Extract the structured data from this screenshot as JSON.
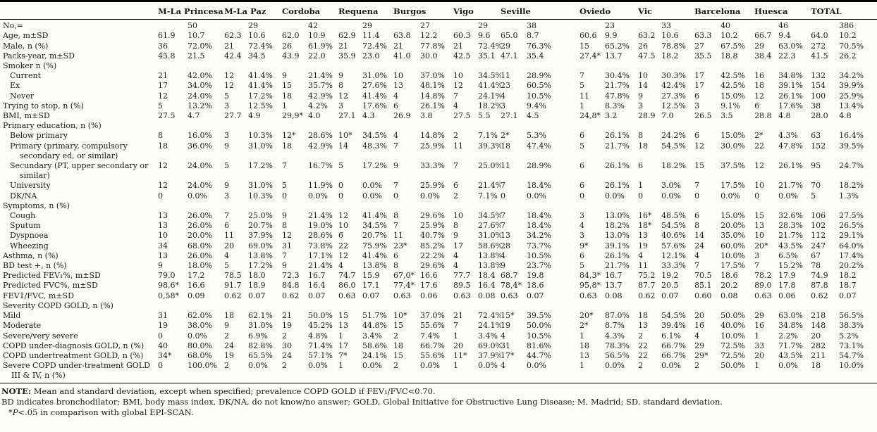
{
  "table": {
    "city_columns": [
      "M-La Princesa",
      "M-La Paz",
      "Cordoba",
      "Requena",
      "Burgos",
      "Vigo",
      "Seville",
      "Oviedo",
      "Vic",
      "Barcelona",
      "Huesca",
      "TOTAL"
    ],
    "rows": [
      {
        "label": "No,=",
        "indent": 0,
        "section": false,
        "cells": [
          "",
          "50",
          "",
          "29",
          "",
          "42",
          "",
          "29",
          "",
          "27",
          "",
          "29",
          "",
          "38",
          "",
          "23",
          "",
          "33",
          "",
          "40",
          "",
          "46",
          "",
          "386"
        ]
      },
      {
        "label": "Age, m±SD",
        "indent": 0,
        "section": false,
        "cells": [
          "61.9",
          "10.7",
          "62.3",
          "10.6",
          "62.0",
          "10.9",
          "62.9",
          "11.4",
          "63.8",
          "12.2",
          "60.3",
          "9.6",
          "65.0",
          "8.7",
          "60.6",
          "9.9",
          "63.2",
          "10.6",
          "63.3",
          "10.2",
          "66.7",
          "9.4",
          "64.0",
          "10.2"
        ]
      },
      {
        "label": "Male, n (%)",
        "indent": 0,
        "section": false,
        "cells": [
          "36",
          "72.0%",
          "21",
          "72.4%",
          "26",
          "61.9%",
          "21",
          "72.4%",
          "21",
          "77.8%",
          "21",
          "72.4%",
          "29",
          "76.3%",
          "15",
          "65.2%",
          "26",
          "78.8%",
          "27",
          "67.5%",
          "29",
          "63.0%",
          "272",
          "70.5%"
        ]
      },
      {
        "label": "Packs-year, m±SD",
        "indent": 0,
        "section": false,
        "cells": [
          "45.8",
          "21.5",
          "42.4",
          "34.5",
          "43.9",
          "22.0",
          "35.9",
          "23.0",
          "41.0",
          "30.0",
          "42.5",
          "35.1",
          "47.1",
          "35.4",
          "27,4*",
          "13.7",
          "47.5",
          "18.2",
          "35.5",
          "18.8",
          "38.4",
          "22.3",
          "41.5",
          "26.2"
        ]
      },
      {
        "label": "Smoker n (%)",
        "indent": 0,
        "section": true,
        "cells": []
      },
      {
        "label": "Current",
        "indent": 1,
        "section": false,
        "cells": [
          "21",
          "42.0%",
          "12",
          "41.4%",
          "9",
          "21.4%",
          "9",
          "31.0%",
          "10",
          "37.0%",
          "10",
          "34.5%",
          "11",
          "28.9%",
          "7",
          "30.4%",
          "10",
          "30.3%",
          "17",
          "42.5%",
          "16",
          "34.8%",
          "132",
          "34.2%"
        ]
      },
      {
        "label": "Ex",
        "indent": 1,
        "section": false,
        "cells": [
          "17",
          "34.0%",
          "12",
          "41.4%",
          "15",
          "35.7%",
          "8",
          "27.6%",
          "13",
          "48.1%",
          "12",
          "41.4%",
          "23",
          "60.5%",
          "5",
          "21.7%",
          "14",
          "42.4%",
          "17",
          "42.5%",
          "18",
          "39.1%",
          "154",
          "39.9%"
        ]
      },
      {
        "label": "Never",
        "indent": 1,
        "section": false,
        "cells": [
          "12",
          "24.0%",
          "5",
          "17.2%",
          "18",
          "42.9%",
          "12",
          "41.4%",
          "4",
          "14.8%",
          "7",
          "24.1%",
          "4",
          "10.5%",
          "11",
          "47.8%",
          "9",
          "27.3%",
          "6",
          "15.0%",
          "12",
          "26.1%",
          "100",
          "25.9%"
        ]
      },
      {
        "label": "Trying to stop, n (%)",
        "indent": 0,
        "section": false,
        "cells": [
          "5",
          "13.2%",
          "3",
          "12.5%",
          "1",
          "4.2%",
          "3",
          "17.6%",
          "6",
          "26.1%",
          "4",
          "18.2%",
          "3",
          "9.4%",
          "1",
          "8.3%",
          "3",
          "12.5%",
          "3",
          "9.1%",
          "6",
          "17.6%",
          "38",
          "13.4%"
        ]
      },
      {
        "label": "BMI, m±SD",
        "indent": 0,
        "section": false,
        "cells": [
          "27.5",
          "4.7",
          "27.7",
          "4.9",
          "29,9*",
          "4.0",
          "27.1",
          "4.3",
          "26.9",
          "3.8",
          "27.5",
          "5.5",
          "27.1",
          "4.5",
          "24,8*",
          "3.2",
          "28.9",
          "7.0",
          "26.5",
          "3.5",
          "28.8",
          "4.8",
          "28.0",
          "4.8"
        ]
      },
      {
        "label": "Primary education, n (%)",
        "indent": 0,
        "section": true,
        "cells": []
      },
      {
        "label": "Below primary",
        "indent": 1,
        "section": false,
        "cells": [
          "8",
          "16.0%",
          "3",
          "10.3%",
          "12*",
          "28.6%",
          "10*",
          "34.5%",
          "4",
          "14.8%",
          "2",
          "7.1%",
          "2*",
          "5.3%",
          "6",
          "26.1%",
          "8",
          "24.2%",
          "6",
          "15.0%",
          "2*",
          "4.3%",
          "63",
          "16.4%"
        ]
      },
      {
        "label": "Primary (primary, compulsory secondary ed, or similar)",
        "indent": 1,
        "section": false,
        "cells": [
          "18",
          "36.0%",
          "9",
          "31.0%",
          "18",
          "42.9%",
          "14",
          "48.3%",
          "7",
          "25.9%",
          "11",
          "39.3%",
          "18",
          "47.4%",
          "5",
          "21.7%",
          "18",
          "54.5%",
          "12",
          "30.0%",
          "22",
          "47.8%",
          "152",
          "39.5%"
        ]
      },
      {
        "label": "Secundary (PT, upper secondary or similar)",
        "indent": 1,
        "section": false,
        "cells": [
          "12",
          "24.0%",
          "5",
          "17.2%",
          "7",
          "16.7%",
          "5",
          "17.2%",
          "9",
          "33.3%",
          "7",
          "25.0%",
          "11",
          "28.9%",
          "6",
          "26.1%",
          "6",
          "18.2%",
          "15",
          "37.5%",
          "12",
          "26.1%",
          "95",
          "24.7%"
        ]
      },
      {
        "label": "University",
        "indent": 1,
        "section": false,
        "cells": [
          "12",
          "24.0%",
          "9",
          "31.0%",
          "5",
          "11.9%",
          "0",
          "0.0%",
          "7",
          "25.9%",
          "6",
          "21.4%",
          "7",
          "18.4%",
          "6",
          "26.1%",
          "1",
          "3.0%",
          "7",
          "17.5%",
          "10",
          "21.7%",
          "70",
          "18.2%"
        ]
      },
      {
        "label": "DK/NA",
        "indent": 1,
        "section": false,
        "cells": [
          "0",
          "0.0%",
          "3",
          "10.3%",
          "0",
          "0.0%",
          "0",
          "0.0%",
          "0",
          "0.0%",
          "2",
          "7.1%",
          "0",
          "0.0%",
          "0",
          "0.0%",
          "0",
          "0.0%",
          "0",
          "0.0%",
          "0",
          "0.0%",
          "5",
          "1.3%"
        ]
      },
      {
        "label": "Symptoms, n (%)",
        "indent": 0,
        "section": true,
        "cells": []
      },
      {
        "label": "Cough",
        "indent": 1,
        "section": false,
        "cells": [
          "13",
          "26.0%",
          "7",
          "25.0%",
          "9",
          "21.4%",
          "12",
          "41.4%",
          "8",
          "29.6%",
          "10",
          "34.5%",
          "7",
          "18.4%",
          "3",
          "13.0%",
          "16*",
          "48.5%",
          "6",
          "15.0%",
          "15",
          "32.6%",
          "106",
          "27.5%"
        ]
      },
      {
        "label": "Sputum",
        "indent": 1,
        "section": false,
        "cells": [
          "13",
          "26.0%",
          "6",
          "20.7%",
          "8",
          "19.0%",
          "10",
          "34.5%",
          "7",
          "25.9%",
          "8",
          "27.6%",
          "7",
          "18.4%",
          "4",
          "18.2%",
          "18*",
          "54.5%",
          "8",
          "20.0%",
          "13",
          "28.3%",
          "102",
          "26.5%"
        ]
      },
      {
        "label": "Dyspnoea",
        "indent": 1,
        "section": false,
        "cells": [
          "10",
          "20.0%",
          "11",
          "37.9%",
          "12",
          "28.6%",
          "6",
          "20.7%",
          "11",
          "40.7%",
          "9",
          "31.0%",
          "13",
          "34.2%",
          "3",
          "13.0%",
          "13",
          "40.6%",
          "14",
          "35.0%",
          "10",
          "21.7%",
          "112",
          "29.1%"
        ]
      },
      {
        "label": "Wheezing",
        "indent": 1,
        "section": false,
        "cells": [
          "34",
          "68.0%",
          "20",
          "69.0%",
          "31",
          "73.8%",
          "22",
          "75.9%",
          "23*",
          "85.2%",
          "17",
          "58.6%",
          "28",
          "73.7%",
          "9*",
          "39.1%",
          "19",
          "57.6%",
          "24",
          "60.0%",
          "20*",
          "43.5%",
          "247",
          "64.0%"
        ]
      },
      {
        "label": "Asthma, n (%)",
        "indent": 0,
        "section": false,
        "cells": [
          "13",
          "26.0%",
          "4",
          "13.8%",
          "7",
          "17.1%",
          "12",
          "41.4%",
          "6",
          "22.2%",
          "4",
          "13.8%",
          "4",
          "10.5%",
          "6",
          "26.1%",
          "4",
          "12.1%",
          "4",
          "10.0%",
          "3",
          "6.5%",
          "67",
          "17.4%"
        ]
      },
      {
        "label": "BD test +, n (%)",
        "indent": 0,
        "section": false,
        "cells": [
          "9",
          "18.0%",
          "5",
          "17.2%",
          "9",
          "21.4%",
          "4",
          "13.8%",
          "8",
          "29.6%",
          "4",
          "13.8%",
          "9",
          "23.7%",
          "5",
          "21.7%",
          "11",
          "33.3%",
          "7",
          "17.5%",
          "7",
          "15.2%",
          "78",
          "20.2%"
        ]
      },
      {
        "label": "Predicted FEV₁%, m±SD",
        "indent": 0,
        "section": false,
        "cells": [
          "79.0",
          "17.2",
          "78.5",
          "18.0",
          "72.3",
          "16.7",
          "74.7",
          "15.9",
          "67,0*",
          "16.6",
          "77.7",
          "18.4",
          "68.7",
          "19.8",
          "84,3*",
          "16.7",
          "75.2",
          "19.2",
          "70.5",
          "18.6",
          "78.2",
          "17.9",
          "74.9",
          "18.2"
        ]
      },
      {
        "label": "Predicted FVC%, m±SD",
        "indent": 0,
        "section": false,
        "cells": [
          "98,6*",
          "16.6",
          "91.7",
          "18.9",
          "84.8",
          "16.4",
          "86.0",
          "17.1",
          "77,4*",
          "17.6",
          "89.5",
          "16.4",
          "78,4*",
          "18.6",
          "95,8*",
          "13.7",
          "87.7",
          "20.5",
          "85.1",
          "20.2",
          "89.0",
          "17.8",
          "87.8",
          "18.7"
        ]
      },
      {
        "label": "FEV1/FVC, m±SD",
        "indent": 0,
        "section": false,
        "cells": [
          "0,58*",
          "0.09",
          "0.62",
          "0.07",
          "0.62",
          "0.07",
          "0.63",
          "0.07",
          "0.63",
          "0.06",
          "0.63",
          "0.08",
          "0.63",
          "0.07",
          "0.63",
          "0.08",
          "0.62",
          "0.07",
          "0.60",
          "0.08",
          "0.63",
          "0.06",
          "0.62",
          "0.07"
        ]
      },
      {
        "label": "Severity COPD GOLD, n (%)",
        "indent": 0,
        "section": true,
        "cells": []
      },
      {
        "label": "Mild",
        "indent": 0,
        "section": false,
        "cells": [
          "31",
          "62.0%",
          "18",
          "62.1%",
          "21",
          "50.0%",
          "15",
          "51.7%",
          "10*",
          "37.0%",
          "21",
          "72.4%",
          "15*",
          "39.5%",
          "20*",
          "87.0%",
          "18",
          "54.5%",
          "20",
          "50.0%",
          "29",
          "63.0%",
          "218",
          "56.5%"
        ]
      },
      {
        "label": "Moderate",
        "indent": 0,
        "section": false,
        "cells": [
          "19",
          "38.0%",
          "9",
          "31.0%",
          "19",
          "45.2%",
          "13",
          "44.8%",
          "15",
          "55.6%",
          "7",
          "24.1%",
          "19",
          "50.0%",
          "2*",
          "8.7%",
          "13",
          "39.4%",
          "16",
          "40.0%",
          "16",
          "34.8%",
          "148",
          "38.3%"
        ]
      },
      {
        "label": "Severe/very severe",
        "indent": 0,
        "section": false,
        "cells": [
          "0",
          "0.0%",
          "2",
          "6.9%",
          "2",
          "4.8%",
          "1",
          "3.4%",
          "2",
          "7.4%",
          "1",
          "3.4%",
          "4",
          "10.5%",
          "1",
          "4.3%",
          "2",
          "6.1%",
          "4",
          "10.0%",
          "1",
          "2.2%",
          "20",
          "5.2%"
        ]
      },
      {
        "label": "COPD under-diagnosis GOLD, n (%)",
        "indent": 0,
        "section": false,
        "cells": [
          "40",
          "80.0%",
          "24",
          "82.8%",
          "30",
          "71.4%",
          "17",
          "58.6%",
          "18",
          "66.7%",
          "20",
          "69.0%",
          "31",
          "81.6%",
          "18",
          "78.3%",
          "22",
          "66.7%",
          "29",
          "72.5%",
          "33",
          "71.7%",
          "282",
          "73.1%"
        ]
      },
      {
        "label": "COPD undertreatment GOLD, n (%)",
        "indent": 0,
        "section": false,
        "cells": [
          "34*",
          "68.0%",
          "19",
          "65.5%",
          "24",
          "57.1%",
          "7*",
          "24.1%",
          "15",
          "55.6%",
          "11*",
          "37.9%",
          "17*",
          "44.7%",
          "13",
          "56.5%",
          "22",
          "66.7%",
          "29*",
          "72.5%",
          "20",
          "43.5%",
          "211",
          "54.7%"
        ]
      },
      {
        "label": "Severe COPD under-treatment GOLD III & IV, n (%)",
        "indent": 0,
        "section": false,
        "cells": [
          "0",
          "100.0%",
          "2",
          "0.0%",
          "2",
          "0.0%",
          "1",
          "0.0%",
          "2",
          "0.0%",
          "1",
          "0.0%",
          "4",
          "0.0%",
          "1",
          "0.0%",
          "2",
          "0.0%",
          "2",
          "50.0%",
          "1",
          "0.0%",
          "18",
          "10.0%"
        ]
      }
    ]
  },
  "footnotes": {
    "note_label": "NOTE:",
    "note_text": " Mean and standard deviation, except when specified; prevalence COPD GOLD if FEV₁/FVC<0.70.",
    "abbreviations": "BD indicates bronchodilator; BMI, body mass index, DK/NA, do not know/no answer; GOLD, Global Initiative for Obstructive Lung Disease; M, Madrid; SD, standard deviation.",
    "pvalue_star": "*",
    "pvalue_p": "P",
    "pvalue_rest": "<.05 in comparison with global EPI-SCAN."
  }
}
